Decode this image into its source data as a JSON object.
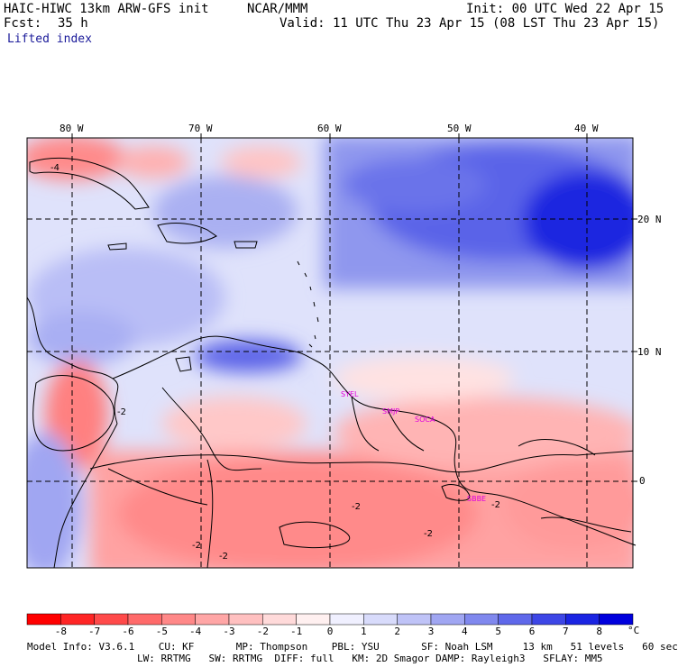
{
  "header": {
    "model": "HAIC-HIWC 13km ARW-GFS init",
    "org": "NCAR/MMM",
    "init": "Init: 00 UTC Wed 22 Apr 15",
    "fcst_label": "Fcst:",
    "fcst_value": "35 h",
    "valid": "Valid: 11 UTC Thu 23 Apr 15 (08 LST Thu 23 Apr 15)",
    "field": "Lifted index"
  },
  "map": {
    "lon_labels": [
      "80 W",
      "70 W",
      "60 W",
      "50 W",
      "40 W"
    ],
    "lat_labels": [
      "20 N",
      "10 N",
      "0"
    ],
    "stations": [
      "SYEL",
      "SMJP",
      "SOCA",
      "SBBE"
    ],
    "palette": {
      "strong_neg": "#ff2020",
      "weak_neg": "#ffd8d8",
      "neutral": "#ffffff",
      "weak_pos": "#d8dcfa",
      "strong_pos": "#0000e0",
      "contour": "#000000",
      "station": "#e000e0"
    },
    "contour_labels": [
      "-4",
      "-2",
      "-2",
      "-2",
      "-2",
      "-2",
      "-2"
    ]
  },
  "colorbar": {
    "ticks": [
      "-8",
      "-7",
      "-6",
      "-5",
      "-4",
      "-3",
      "-2",
      "-1",
      "0",
      "1",
      "2",
      "3",
      "4",
      "5",
      "6",
      "7",
      "8"
    ],
    "unit": "°C",
    "colors": [
      "#ff0000",
      "#ff2525",
      "#ff4a4a",
      "#ff6a6a",
      "#ff8888",
      "#ffa6a6",
      "#ffc0c0",
      "#ffdada",
      "#fff0f0",
      "#f0f0ff",
      "#d8dbfb",
      "#bfc3f7",
      "#a0a6f2",
      "#8088ee",
      "#5f68ea",
      "#3d46e6",
      "#1a24e2",
      "#0000dd"
    ]
  },
  "info": {
    "line1": "Model Info: V3.6.1    CU: KF       MP: Thompson    PBL: YSU       SF: Noah LSM     13 km   51 levels   60 sec",
    "line2": "LW: RRTMG   SW: RRTMG  DIFF: full   KM: 2D Smagor DAMP: Rayleigh3   SFLAY: MM5"
  }
}
